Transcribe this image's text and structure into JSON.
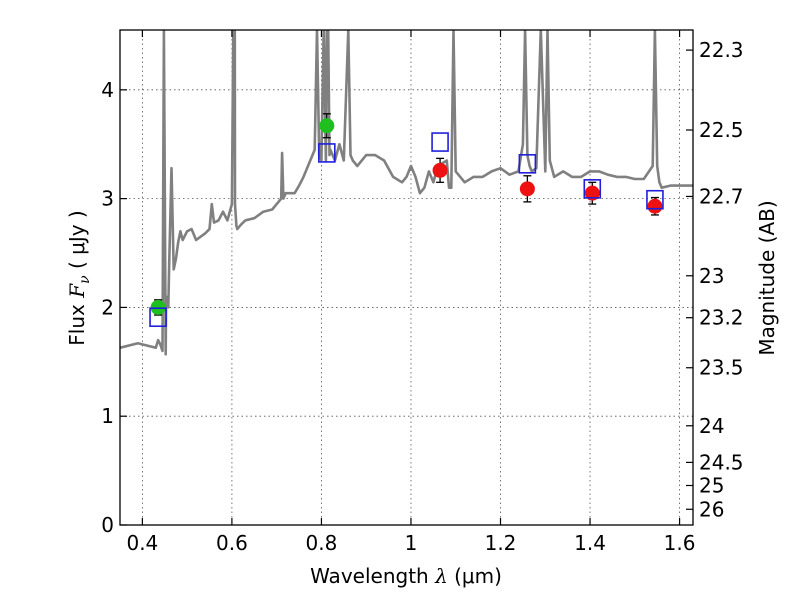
{
  "chart_data": {
    "type": "scatter",
    "xlabel_prefix": "Wavelength  ",
    "xlabel_symbol": "λ",
    "xlabel_units": "(μm)",
    "ylabel_left_prefix": "Flux  ",
    "ylabel_left_symbol": "F",
    "ylabel_left_sub": "ν",
    "ylabel_left_units": "( μJy )",
    "ylabel_right": "Magnitude (AB)",
    "xlim": [
      0.35,
      1.63
    ],
    "ylim": [
      0,
      4.55
    ],
    "grid": true,
    "x_ticks": [
      0.4,
      0.6,
      0.8,
      1.0,
      1.2,
      1.4,
      1.6
    ],
    "x_tick_labels": [
      "0.4",
      "0.6",
      "0.8",
      "1",
      "1.2",
      "1.4",
      "1.6"
    ],
    "y_ticks": [
      0,
      1,
      2,
      3,
      4
    ],
    "y_tick_labels": [
      "0",
      "1",
      "2",
      "3",
      "4"
    ],
    "right_ticks": [
      {
        "mag": 22.3,
        "label": "22.3"
      },
      {
        "mag": 22.5,
        "label": "22.5"
      },
      {
        "mag": 22.7,
        "label": "22.7"
      },
      {
        "mag": 23.0,
        "label": "23"
      },
      {
        "mag": 23.2,
        "label": "23.2"
      },
      {
        "mag": 23.5,
        "label": "23.5"
      },
      {
        "mag": 24.0,
        "label": "24"
      },
      {
        "mag": 24.5,
        "label": "24.5"
      },
      {
        "mag": 25.0,
        "label": "25"
      },
      {
        "mag": 26.0,
        "label": "26"
      }
    ],
    "series": [
      {
        "name": "model spectrum",
        "kind": "line",
        "color": "#808080",
        "x": [
          0.35,
          0.39,
          0.42,
          0.43,
          0.435,
          0.44,
          0.445,
          0.448,
          0.452,
          0.453,
          0.458,
          0.46,
          0.465,
          0.47,
          0.475,
          0.48,
          0.485,
          0.49,
          0.5,
          0.51,
          0.52,
          0.53,
          0.54,
          0.55,
          0.555,
          0.56,
          0.57,
          0.58,
          0.59,
          0.6,
          0.603,
          0.606,
          0.6065,
          0.607,
          0.61,
          0.612,
          0.62,
          0.63,
          0.65,
          0.67,
          0.69,
          0.7,
          0.71,
          0.712,
          0.715,
          0.72,
          0.74,
          0.75,
          0.76,
          0.77,
          0.785,
          0.79,
          0.795,
          0.8,
          0.805,
          0.81,
          0.812,
          0.815,
          0.818,
          0.82,
          0.83,
          0.84,
          0.85,
          0.86,
          0.865,
          0.87,
          0.88,
          0.9,
          0.92,
          0.94,
          0.96,
          0.98,
          0.99,
          1.0,
          1.01,
          1.02,
          1.03,
          1.04,
          1.05,
          1.06,
          1.08,
          1.085,
          1.09,
          1.095,
          1.1,
          1.12,
          1.14,
          1.16,
          1.18,
          1.2,
          1.22,
          1.24,
          1.25,
          1.255,
          1.26,
          1.265,
          1.27,
          1.28,
          1.29,
          1.3,
          1.305,
          1.31,
          1.32,
          1.34,
          1.36,
          1.38,
          1.4,
          1.42,
          1.44,
          1.46,
          1.48,
          1.5,
          1.52,
          1.54,
          1.545,
          1.55,
          1.555,
          1.56,
          1.58,
          1.6,
          1.63
        ],
        "y": [
          1.63,
          1.67,
          1.64,
          1.63,
          1.7,
          1.66,
          1.6,
          4.55,
          1.57,
          2.1,
          2.0,
          2.4,
          3.28,
          2.35,
          2.45,
          2.6,
          2.7,
          2.62,
          2.7,
          2.72,
          2.62,
          2.65,
          2.68,
          2.72,
          2.95,
          2.78,
          2.8,
          2.88,
          2.8,
          2.95,
          4.55,
          4.55,
          4.55,
          2.95,
          2.75,
          2.72,
          2.76,
          2.8,
          2.82,
          2.88,
          2.9,
          2.95,
          3.0,
          3.42,
          3.0,
          3.05,
          3.05,
          3.12,
          3.2,
          3.3,
          3.45,
          4.55,
          3.4,
          3.35,
          4.55,
          3.35,
          4.55,
          4.55,
          3.4,
          3.45,
          3.35,
          3.5,
          3.35,
          4.55,
          3.4,
          3.35,
          3.3,
          3.4,
          3.4,
          3.35,
          3.2,
          3.15,
          3.2,
          3.3,
          3.2,
          3.05,
          3.1,
          3.25,
          3.15,
          3.3,
          3.35,
          3.1,
          3.1,
          4.55,
          3.25,
          3.15,
          3.2,
          3.2,
          3.25,
          3.28,
          3.22,
          3.25,
          3.5,
          4.55,
          3.4,
          3.3,
          3.25,
          3.28,
          4.55,
          3.25,
          4.55,
          3.35,
          3.2,
          3.25,
          3.2,
          3.2,
          3.25,
          3.25,
          3.22,
          3.2,
          3.2,
          3.18,
          3.18,
          3.3,
          4.55,
          3.3,
          3.15,
          3.1,
          3.12,
          3.12,
          3.12
        ]
      },
      {
        "name": "observed (green)",
        "kind": "points",
        "color": "#1fbf1f",
        "x": [
          0.435,
          0.812
        ],
        "y": [
          2.0,
          3.67
        ],
        "err": [
          0.07,
          0.11
        ]
      },
      {
        "name": "observed (red)",
        "kind": "points",
        "color": "#ee1111",
        "x": [
          1.065,
          1.26,
          1.405,
          1.545
        ],
        "y": [
          3.26,
          3.09,
          3.05,
          2.93
        ],
        "err": [
          0.11,
          0.12,
          0.1,
          0.08
        ]
      },
      {
        "name": "model photometry",
        "kind": "open-squares",
        "color": "#1f1fdd",
        "x": [
          0.435,
          0.812,
          1.065,
          1.26,
          1.405,
          1.545
        ],
        "y": [
          1.91,
          3.42,
          3.52,
          3.32,
          3.09,
          2.99
        ]
      }
    ]
  }
}
